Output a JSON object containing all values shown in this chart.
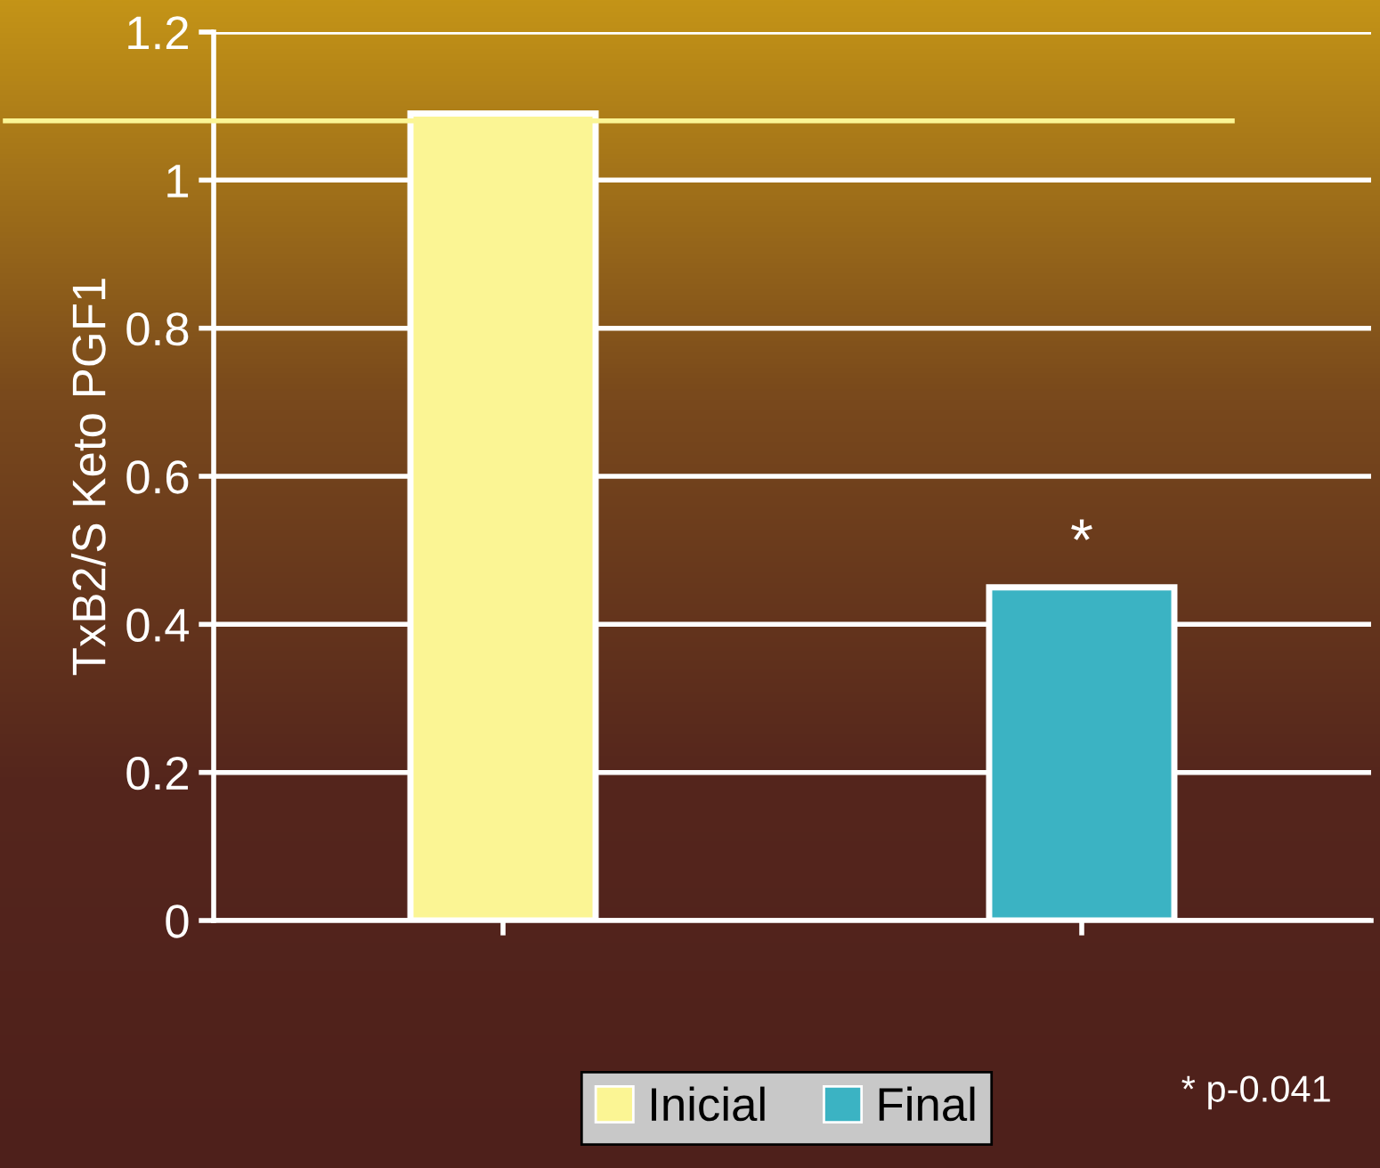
{
  "chart_data": {
    "type": "bar",
    "ylabel": "TxB2/S Keto PGF1",
    "categories": [
      null,
      null
    ],
    "series": [
      {
        "name": "Inicial",
        "color": "#fbf594",
        "values": [
          1.09,
          null
        ]
      },
      {
        "name": "Final",
        "color": "#3bb3c3",
        "values": [
          null,
          0.45
        ]
      }
    ],
    "ylim": [
      0,
      1.2
    ],
    "yticks": [
      0,
      0.2,
      0.4,
      0.6,
      0.8,
      1,
      1.2
    ],
    "grid": "y",
    "legend": "bottom",
    "ref_lines": [
      {
        "axis": "y",
        "value": 1.08,
        "color": "#fbf594"
      }
    ],
    "annotations": [
      {
        "text": "*",
        "y": 0.45
      },
      "* p-0.041"
    ]
  }
}
